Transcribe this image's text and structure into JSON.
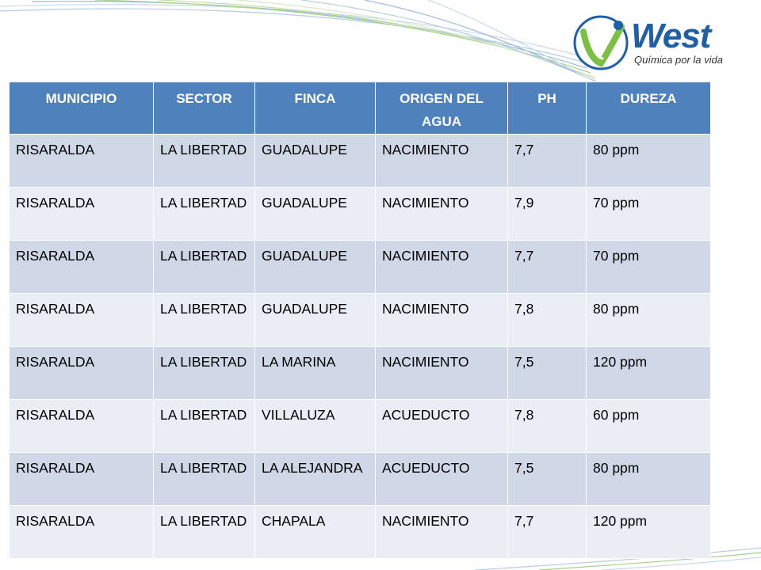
{
  "brand": {
    "name": "West",
    "tagline": "Química por la vida",
    "colors": {
      "blue": "#1f5fa8",
      "green": "#7ac143",
      "header": "#4f81bd"
    }
  },
  "table": {
    "headers": [
      "MUNICIPIO",
      "SECTOR",
      "FINCA",
      "ORIGEN DEL AGUA",
      "PH",
      "DUREZA"
    ],
    "rows": [
      [
        "RISARALDA",
        "LA LIBERTAD",
        "GUADALUPE",
        "NACIMIENTO",
        "7,7",
        "80 ppm"
      ],
      [
        "RISARALDA",
        "LA LIBERTAD",
        "GUADALUPE",
        "NACIMIENTO",
        "7,9",
        "70 ppm"
      ],
      [
        "RISARALDA",
        "LA LIBERTAD",
        "GUADALUPE",
        "NACIMIENTO",
        "7,7",
        "70 ppm"
      ],
      [
        "RISARALDA",
        "LA LIBERTAD",
        "GUADALUPE",
        "NACIMIENTO",
        "7,8",
        "80 ppm"
      ],
      [
        "RISARALDA",
        "LA LIBERTAD",
        "LA MARINA",
        "NACIMIENTO",
        "7,5",
        "120 ppm"
      ],
      [
        "RISARALDA",
        "LA LIBERTAD",
        "VILLALUZA",
        "ACUEDUCTO",
        "7,8",
        "60 ppm"
      ],
      [
        "RISARALDA",
        "LA LIBERTAD",
        "LA ALEJANDRA",
        "ACUEDUCTO",
        "7,5",
        "80 ppm"
      ],
      [
        "RISARALDA",
        "LA LIBERTAD",
        "CHAPALA",
        "NACIMIENTO",
        "7,7",
        "120 ppm"
      ]
    ]
  }
}
